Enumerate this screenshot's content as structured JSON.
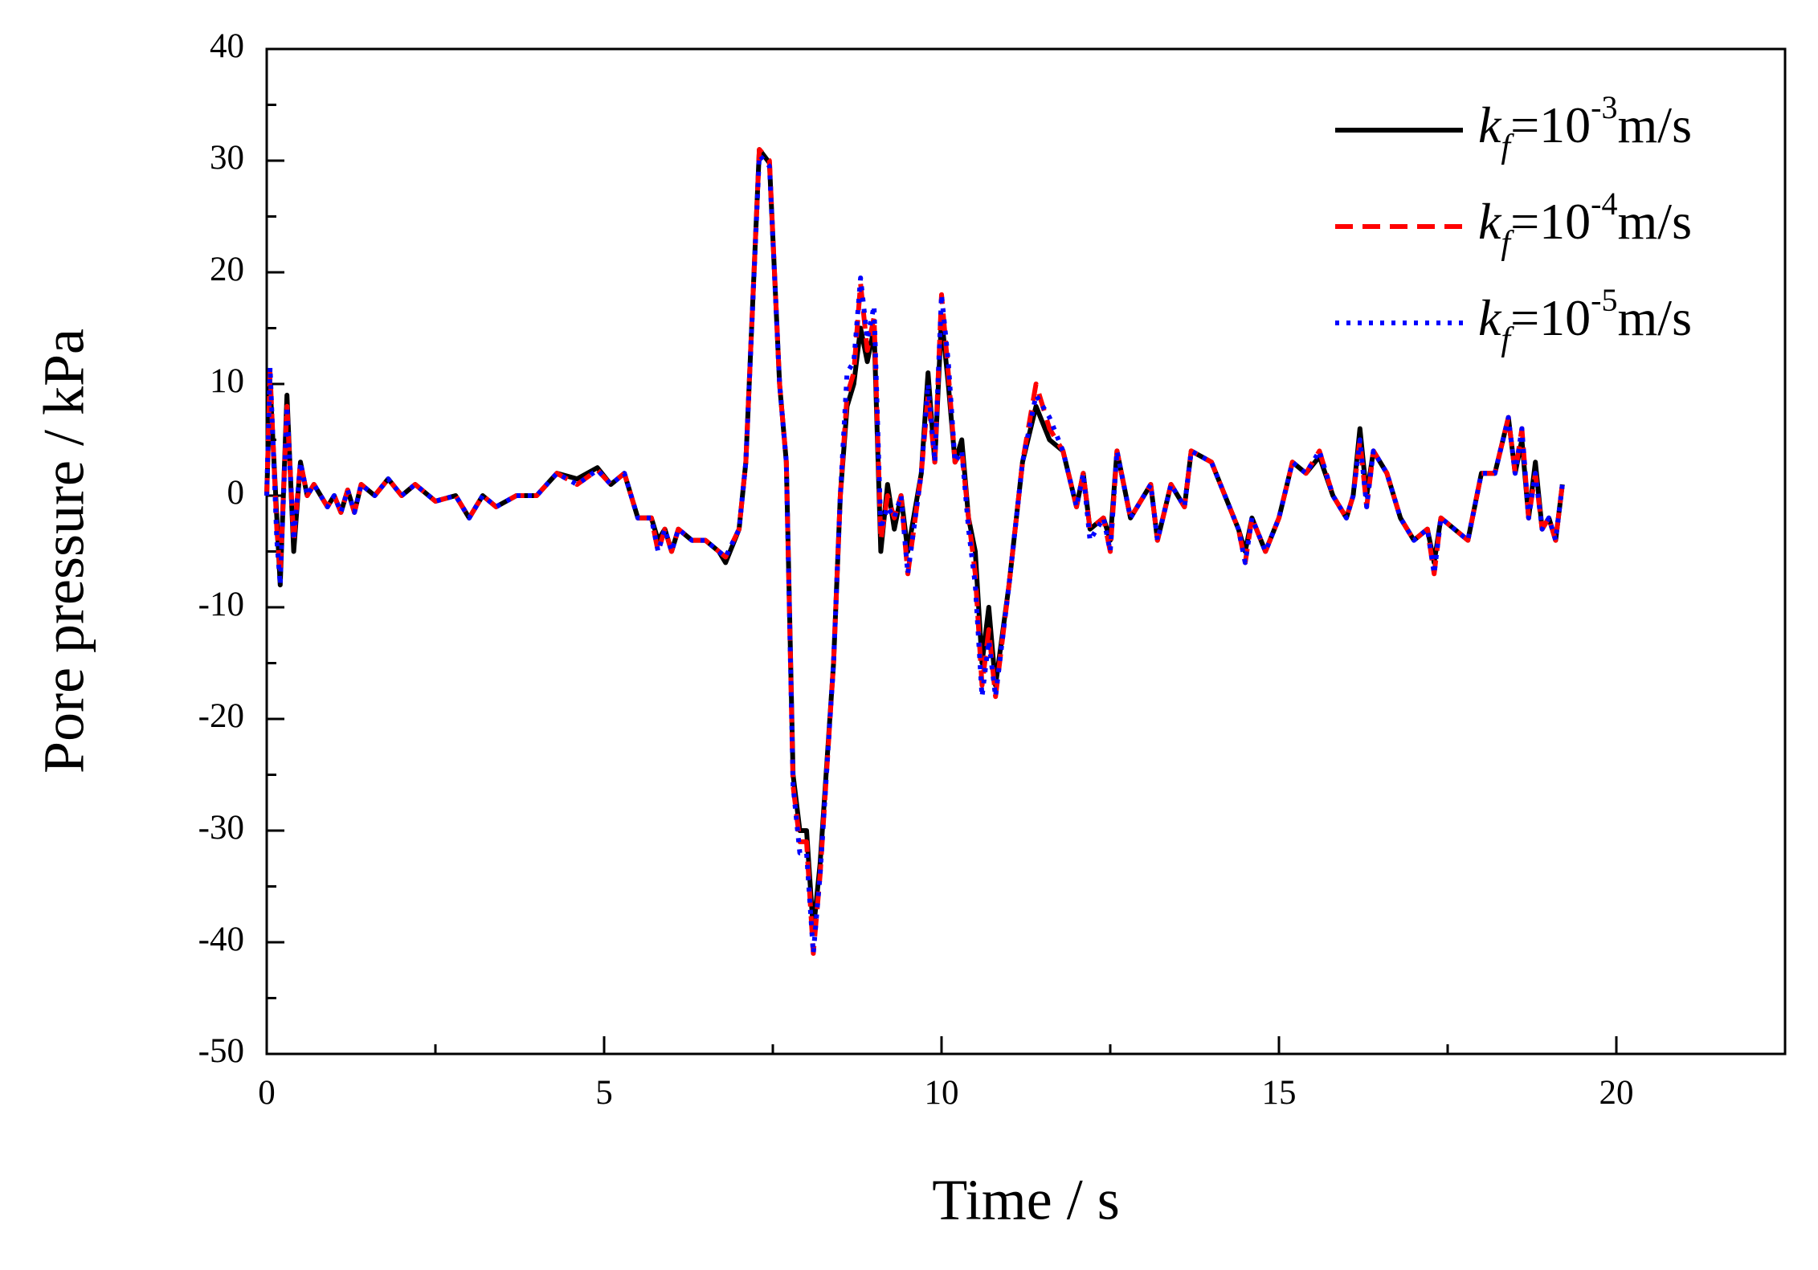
{
  "chart_data": {
    "type": "line",
    "xlabel": "Time / s",
    "ylabel": "Pore pressure / kPa",
    "xlim": [
      0,
      22.5
    ],
    "ylim": [
      -50,
      40
    ],
    "xticks": [
      0,
      5,
      10,
      15,
      20
    ],
    "yticks": [
      -50,
      -40,
      -30,
      -20,
      -10,
      0,
      10,
      20,
      30,
      40
    ],
    "xminorticks": [
      2.5,
      7.5,
      12.5,
      17.5,
      22.5
    ],
    "yminorticks": [
      -45,
      -35,
      -25,
      -15,
      -5,
      5,
      15,
      25,
      35
    ],
    "legend": "upper right",
    "x": [
      0,
      0.05,
      0.15,
      0.2,
      0.3,
      0.4,
      0.5,
      0.6,
      0.7,
      0.9,
      1.0,
      1.1,
      1.2,
      1.3,
      1.4,
      1.6,
      1.8,
      2.0,
      2.2,
      2.5,
      2.8,
      3.0,
      3.2,
      3.4,
      3.7,
      4.0,
      4.3,
      4.6,
      4.9,
      5.1,
      5.3,
      5.5,
      5.7,
      5.8,
      5.9,
      6.0,
      6.1,
      6.3,
      6.5,
      6.7,
      6.8,
      7.0,
      7.1,
      7.3,
      7.45,
      7.6,
      7.7,
      7.8,
      7.9,
      8.0,
      8.1,
      8.2,
      8.4,
      8.5,
      8.6,
      8.7,
      8.8,
      8.9,
      9.0,
      9.1,
      9.2,
      9.3,
      9.4,
      9.5,
      9.7,
      9.8,
      9.9,
      10.0,
      10.1,
      10.2,
      10.3,
      10.4,
      10.5,
      10.6,
      10.7,
      10.8,
      11.0,
      11.2,
      11.4,
      11.6,
      11.8,
      12.0,
      12.1,
      12.2,
      12.4,
      12.5,
      12.6,
      12.8,
      13.0,
      13.1,
      13.2,
      13.4,
      13.6,
      13.7,
      14.0,
      14.2,
      14.4,
      14.5,
      14.6,
      14.8,
      15.0,
      15.2,
      15.4,
      15.6,
      15.8,
      16.0,
      16.1,
      16.2,
      16.3,
      16.4,
      16.6,
      16.8,
      17.0,
      17.2,
      17.3,
      17.4,
      17.6,
      17.8,
      18.0,
      18.2,
      18.4,
      18.5,
      18.6,
      18.7,
      18.8,
      18.9,
      19.0,
      19.1,
      19.2
    ],
    "series": [
      {
        "name": "kf=10-3m/s",
        "color": "#000000",
        "dash": "solid",
        "values": [
          0,
          10,
          -2,
          -8,
          9,
          -5,
          3,
          0,
          1,
          -1,
          0,
          -1.5,
          0.5,
          -1.5,
          1,
          0,
          1.5,
          0,
          1,
          -0.5,
          0,
          -2,
          0,
          -1,
          0,
          0,
          2,
          1.5,
          2.5,
          1,
          2,
          -2,
          -2,
          -4,
          -3,
          -5,
          -3,
          -4,
          -4,
          -5,
          -6,
          -3,
          3,
          31,
          29.8,
          10,
          3,
          -25,
          -30,
          -30,
          -39,
          -33,
          -15,
          0,
          8,
          10,
          15,
          12,
          15,
          -5,
          1,
          -3,
          0,
          -5,
          2,
          11,
          3,
          16,
          10,
          3,
          5,
          -2,
          -5,
          -15,
          -10,
          -17,
          -8,
          3,
          8,
          5,
          4,
          -1,
          2,
          -3,
          -2,
          -4,
          4,
          -2,
          0,
          1,
          -4,
          1,
          -1,
          4,
          3,
          0,
          -3,
          -5,
          -2,
          -5,
          -2,
          3,
          2,
          3.5,
          0,
          -2,
          0,
          6,
          0,
          4,
          2,
          -2,
          -4,
          -3,
          -6,
          -2,
          -3,
          -4,
          2,
          2,
          7,
          2,
          5,
          -2,
          3,
          -3,
          -2,
          -4,
          1
        ]
      },
      {
        "name": "kf=10-4m/s",
        "color": "#ff0000",
        "dash": "dashed",
        "values": [
          0,
          11,
          -3,
          -7,
          8,
          -4,
          3,
          0,
          1,
          -1,
          0,
          -1.5,
          0.5,
          -1.5,
          1,
          0,
          1.5,
          0,
          1,
          -0.5,
          0,
          -2,
          0,
          -1,
          0,
          0,
          2,
          1,
          2.3,
          1,
          2,
          -2,
          -2,
          -5,
          -3,
          -5,
          -3,
          -4,
          -4,
          -5,
          -5.5,
          -3,
          3,
          31,
          30,
          10,
          3,
          -26,
          -31,
          -31,
          -41,
          -34,
          -15,
          0,
          9,
          11,
          19,
          13,
          16,
          -4,
          0,
          -2,
          0,
          -7,
          2,
          9,
          3,
          18,
          11,
          3,
          4,
          -2,
          -7,
          -17,
          -12,
          -18,
          -8,
          3,
          10,
          6,
          4,
          -1,
          2,
          -3,
          -2,
          -5,
          4,
          -2,
          0,
          1,
          -4,
          1,
          -1,
          4,
          3,
          0,
          -3,
          -6,
          -2,
          -5,
          -2,
          3,
          2,
          4,
          0,
          -2,
          0,
          5,
          -1,
          4,
          2,
          -2,
          -4,
          -3,
          -7,
          -2,
          -3,
          -4,
          2,
          2,
          7,
          2,
          6,
          -2,
          2,
          -3,
          -2,
          -4,
          1
        ]
      },
      {
        "name": "kf=10-5m/s",
        "color": "#0000ff",
        "dash": "dotted",
        "values": [
          0,
          11.5,
          -4,
          -8,
          8,
          -4,
          3,
          0,
          1,
          -1,
          0,
          -1.5,
          0.5,
          -1.5,
          1,
          0,
          1.5,
          0,
          1,
          -0.5,
          0,
          -2,
          0,
          -1,
          0,
          0,
          2,
          1,
          2.3,
          1,
          2,
          -2,
          -2,
          -5,
          -3,
          -5,
          -3,
          -4,
          -4,
          -5,
          -5.5,
          -3,
          3,
          30.5,
          29.5,
          10,
          3,
          -26,
          -32,
          -32,
          -41,
          -34,
          -15,
          0,
          11,
          12,
          19.5,
          14,
          17,
          -3,
          -1,
          -2,
          0,
          -7,
          2,
          10,
          3,
          18,
          12,
          3,
          4,
          -3,
          -8,
          -18,
          -13,
          -18,
          -8,
          3,
          9,
          7,
          4,
          -1,
          2,
          -4,
          -2,
          -5,
          4,
          -2,
          0,
          1,
          -4,
          1,
          -1,
          4,
          3,
          0,
          -3,
          -6,
          -2,
          -5,
          -2,
          3,
          2,
          4,
          0,
          -2,
          0,
          5,
          -1,
          4,
          2,
          -2,
          -4,
          -3,
          -7,
          -2,
          -3,
          -4,
          2,
          2,
          7,
          2,
          6,
          -2,
          2,
          -3,
          -2,
          -4,
          1
        ]
      }
    ]
  }
}
